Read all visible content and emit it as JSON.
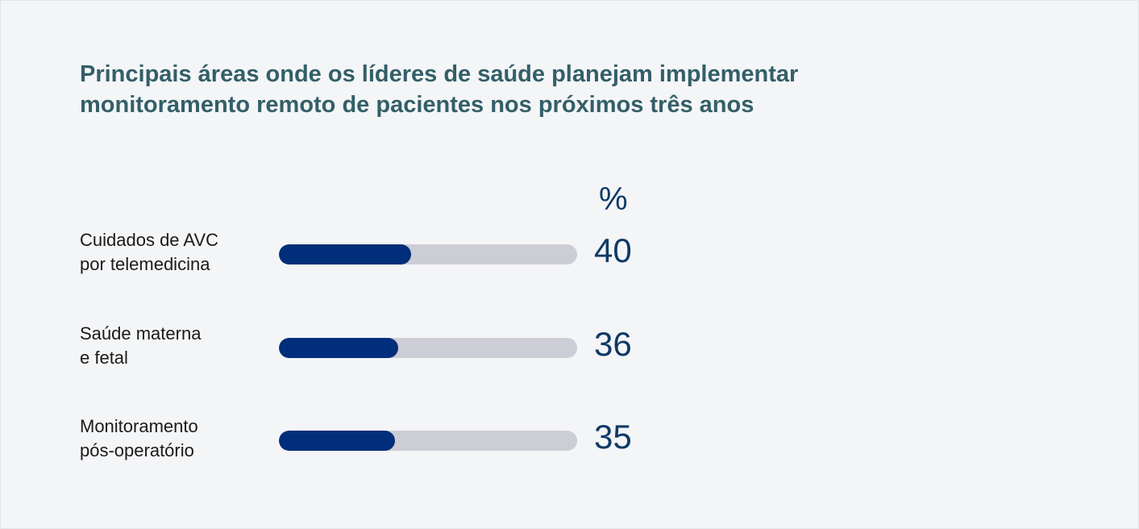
{
  "chart_data": {
    "type": "bar",
    "orientation": "horizontal",
    "title": "Principais áreas onde os líderes de saúde planejam implementar monitoramento remoto de pacientes nos próximos três anos",
    "unit_label": "%",
    "categories": [
      "Cuidados de AVC\npor telemedicina",
      "Saúde materna\ne fetal",
      "Monitoramento\npós-operatório"
    ],
    "values": [
      40,
      36,
      35
    ],
    "value_labels": [
      "40",
      "36",
      "35"
    ],
    "xlim": [
      0,
      90
    ],
    "grid": false,
    "colors": {
      "bar": "#002e7a",
      "track": "#cdcdd5",
      "value_text": "#0e3a66",
      "title": "#335f68",
      "background": "#f4f5f7"
    }
  }
}
